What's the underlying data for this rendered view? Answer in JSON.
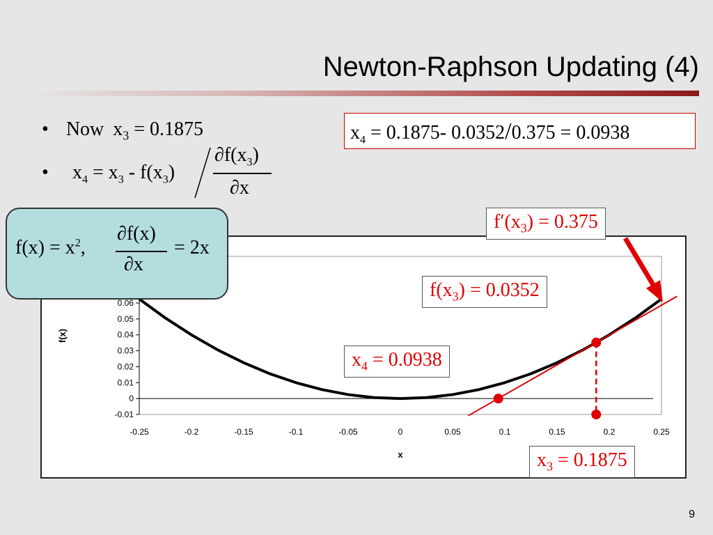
{
  "slide": {
    "title": "Newton-Raphson Updating (4)",
    "page_number": "9",
    "bullet_glyph": "•",
    "bullet1": {
      "prefix": "Now",
      "var": "x",
      "sub": "3",
      "rest": " = 0.1875"
    },
    "bullet2": {
      "lhs_var": "x",
      "lhs_sub": "4",
      "eq": " = x",
      "eq_sub": "3",
      "minus": " - f(x",
      "minus_sub": "3",
      "close": ")",
      "num": "∂f(x",
      "num_sub": "3",
      "num_close": ")",
      "den": "∂x"
    },
    "computation_box": {
      "var": "x",
      "sub": "4",
      "text": " = 0.1875- 0.0352",
      "slash": "/",
      "text2": "0.375 = 0.0938"
    },
    "definition_box": {
      "lhs": "f(x) = x",
      "exp": "2",
      "comma": ",",
      "num": "∂f(x)",
      "den": "∂x",
      "rhs": "= 2x"
    }
  },
  "annotations": {
    "fprime": {
      "text": "f′(x",
      "sub": "3",
      "rest": ") = 0.375"
    },
    "fx3": {
      "text": "f(x",
      "sub": "3",
      "rest": ") = 0.0352"
    },
    "x4": {
      "text": "x",
      "sub": "4",
      "rest": " = 0.0938"
    },
    "x3": {
      "text": "x",
      "sub": "3",
      "rest": " = 0.1875"
    }
  },
  "colors": {
    "accent_red": "#e00000",
    "curve": "#000000",
    "box_fill": "#b4dde0"
  },
  "chart_data": {
    "type": "line",
    "xlabel": "x",
    "ylabel": "f(x)",
    "xlim": [
      -0.25,
      0.25
    ],
    "ylim": [
      -0.01,
      0.06
    ],
    "x_ticks": [
      "-0.25",
      "-0.2",
      "-0.15",
      "-0.1",
      "-0.05",
      "0",
      "0.05",
      "0.1",
      "0.15",
      "0.2",
      "0.25"
    ],
    "y_ticks": [
      "-0.01",
      "0",
      "0.01",
      "0.02",
      "0.03",
      "0.04",
      "0.05",
      "0.06"
    ],
    "series": [
      {
        "x": [
          -0.25,
          -0.225,
          -0.2,
          -0.175,
          -0.15,
          -0.125,
          -0.1,
          -0.075,
          -0.05,
          -0.025,
          0,
          0.025,
          0.05,
          0.075,
          0.1,
          0.125,
          0.15,
          0.175,
          0.2,
          0.225,
          0.25
        ],
        "y": [
          0.0625,
          0.0506,
          0.04,
          0.0306,
          0.0225,
          0.0156,
          0.01,
          0.0056,
          0.0025,
          0.0006,
          0,
          0.0006,
          0.0025,
          0.0056,
          0.01,
          0.0156,
          0.0225,
          0.0306,
          0.04,
          0.0506,
          0.0625
        ]
      }
    ],
    "tangent": {
      "x0": 0.1875,
      "y0": 0.0352,
      "slope": 0.375
    },
    "points": [
      {
        "x": 0.1875,
        "y": 0.0352
      },
      {
        "x": 0.0938,
        "y": 0
      },
      {
        "x": 0.1875,
        "y": -0.01
      }
    ]
  }
}
